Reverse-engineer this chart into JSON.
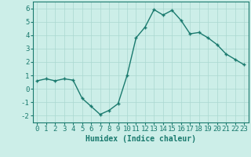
{
  "x": [
    0,
    1,
    2,
    3,
    4,
    5,
    6,
    7,
    8,
    9,
    10,
    11,
    12,
    13,
    14,
    15,
    16,
    17,
    18,
    19,
    20,
    21,
    22,
    23
  ],
  "y": [
    0.6,
    0.75,
    0.6,
    0.75,
    0.65,
    -0.7,
    -1.3,
    -1.9,
    -1.6,
    -1.1,
    1.0,
    3.8,
    4.6,
    5.9,
    5.5,
    5.85,
    5.1,
    4.1,
    4.2,
    3.8,
    3.3,
    2.6,
    2.2,
    1.8
  ],
  "line_color": "#1a7a6e",
  "marker": "+",
  "marker_size": 3,
  "marker_lw": 1.0,
  "bg_color": "#cceee8",
  "grid_color": "#aad8d0",
  "xlabel": "Humidex (Indice chaleur)",
  "ylim": [
    -2.5,
    6.5
  ],
  "xlim": [
    -0.5,
    23.5
  ],
  "yticks": [
    -2,
    -1,
    0,
    1,
    2,
    3,
    4,
    5,
    6
  ],
  "xticks": [
    0,
    1,
    2,
    3,
    4,
    5,
    6,
    7,
    8,
    9,
    10,
    11,
    12,
    13,
    14,
    15,
    16,
    17,
    18,
    19,
    20,
    21,
    22,
    23
  ],
  "title_color": "#1a7a6e",
  "axis_color": "#1a7a6e",
  "label_fontsize": 7,
  "tick_fontsize": 6.5,
  "linewidth": 1.0
}
